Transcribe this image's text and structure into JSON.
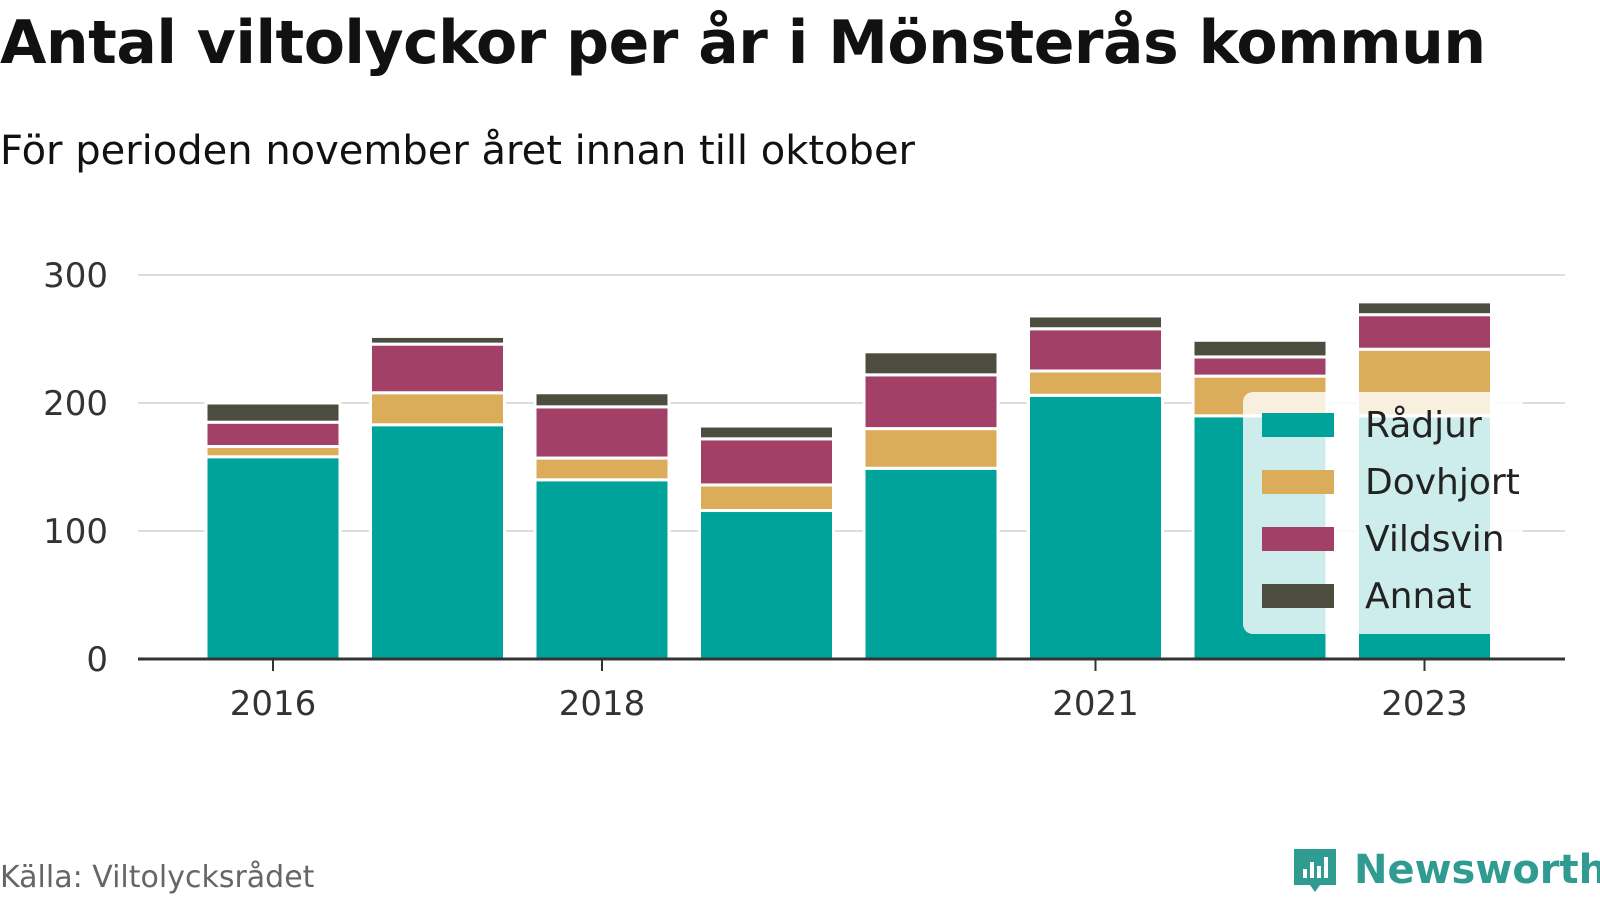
{
  "title": "Antal viltolyckor per år i Mönsterås kommun",
  "subtitle": "För perioden november året innan till oktober",
  "source": "Källa: Viltolycksrådet",
  "brand": {
    "name": "Newsworthy",
    "icon": "newsworthy-logo-icon",
    "color": "#2f9b91"
  },
  "chart_data": {
    "type": "bar",
    "stacked": true,
    "categories": [
      "2016",
      "2017",
      "2018",
      "2019",
      "2020",
      "2021",
      "2022",
      "2023"
    ],
    "x_tick_labels": [
      "2016",
      "2018",
      "2021",
      "2023"
    ],
    "y_ticks": [
      0,
      100,
      200,
      300
    ],
    "ylim": [
      0,
      300
    ],
    "grid": true,
    "legend_position": "right",
    "series": [
      {
        "name": "Rådjur",
        "color": "#00a39a",
        "values": [
          158,
          183,
          140,
          116,
          149,
          206,
          190,
          190
        ]
      },
      {
        "name": "Dovhjort",
        "color": "#dbad5a",
        "values": [
          8,
          25,
          17,
          20,
          31,
          19,
          31,
          52
        ]
      },
      {
        "name": "Vildsvin",
        "color": "#a34068",
        "values": [
          19,
          38,
          40,
          36,
          42,
          33,
          15,
          27
        ]
      },
      {
        "name": "Annat",
        "color": "#4d4d3f",
        "values": [
          15,
          6,
          11,
          10,
          18,
          10,
          13,
          10
        ]
      }
    ]
  }
}
